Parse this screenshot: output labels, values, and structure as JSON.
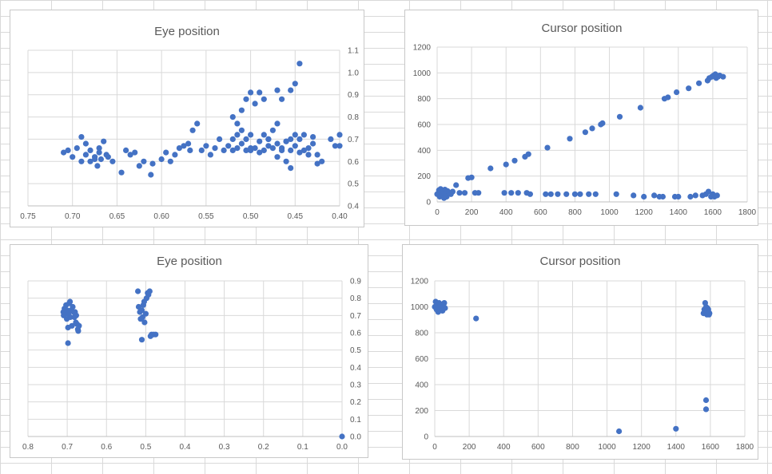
{
  "charts": [
    {
      "id": "tl",
      "type": "scatter",
      "title": "Eye position",
      "xlim": [
        0.75,
        0.4
      ],
      "ylim": [
        0.4,
        1.1
      ],
      "xstep": 0.05,
      "ystep": 0.1,
      "xdigits": 2,
      "ydigits": 1,
      "yaxis_side": "right",
      "grid": true,
      "color": "#4472c4",
      "points": [
        [
          0.71,
          0.64
        ],
        [
          0.705,
          0.65
        ],
        [
          0.7,
          0.62
        ],
        [
          0.695,
          0.66
        ],
        [
          0.69,
          0.6
        ],
        [
          0.69,
          0.71
        ],
        [
          0.685,
          0.63
        ],
        [
          0.685,
          0.68
        ],
        [
          0.68,
          0.6
        ],
        [
          0.68,
          0.65
        ],
        [
          0.675,
          0.62
        ],
        [
          0.675,
          0.61
        ],
        [
          0.672,
          0.58
        ],
        [
          0.67,
          0.64
        ],
        [
          0.67,
          0.66
        ],
        [
          0.668,
          0.61
        ],
        [
          0.665,
          0.69
        ],
        [
          0.662,
          0.63
        ],
        [
          0.66,
          0.62
        ],
        [
          0.655,
          0.6
        ],
        [
          0.645,
          0.55
        ],
        [
          0.64,
          0.65
        ],
        [
          0.635,
          0.63
        ],
        [
          0.63,
          0.64
        ],
        [
          0.625,
          0.58
        ],
        [
          0.62,
          0.6
        ],
        [
          0.612,
          0.54
        ],
        [
          0.61,
          0.59
        ],
        [
          0.6,
          0.61
        ],
        [
          0.595,
          0.64
        ],
        [
          0.59,
          0.6
        ],
        [
          0.585,
          0.63
        ],
        [
          0.58,
          0.66
        ],
        [
          0.575,
          0.67
        ],
        [
          0.57,
          0.68
        ],
        [
          0.568,
          0.65
        ],
        [
          0.565,
          0.74
        ],
        [
          0.56,
          0.77
        ],
        [
          0.555,
          0.65
        ],
        [
          0.55,
          0.67
        ],
        [
          0.545,
          0.63
        ],
        [
          0.54,
          0.66
        ],
        [
          0.535,
          0.7
        ],
        [
          0.53,
          0.65
        ],
        [
          0.525,
          0.67
        ],
        [
          0.52,
          0.65
        ],
        [
          0.515,
          0.66
        ],
        [
          0.51,
          0.68
        ],
        [
          0.505,
          0.65
        ],
        [
          0.5,
          0.66
        ],
        [
          0.49,
          0.69
        ],
        [
          0.485,
          0.65
        ],
        [
          0.48,
          0.7
        ],
        [
          0.475,
          0.66
        ],
        [
          0.47,
          0.68
        ],
        [
          0.465,
          0.66
        ],
        [
          0.46,
          0.69
        ],
        [
          0.455,
          0.7
        ],
        [
          0.45,
          0.67
        ],
        [
          0.445,
          0.64
        ],
        [
          0.44,
          0.65
        ],
        [
          0.435,
          0.66
        ],
        [
          0.43,
          0.68
        ],
        [
          0.425,
          0.63
        ],
        [
          0.52,
          0.7
        ],
        [
          0.515,
          0.72
        ],
        [
          0.51,
          0.74
        ],
        [
          0.505,
          0.7
        ],
        [
          0.5,
          0.72
        ],
        [
          0.495,
          0.66
        ],
        [
          0.49,
          0.64
        ],
        [
          0.485,
          0.72
        ],
        [
          0.48,
          0.67
        ],
        [
          0.475,
          0.74
        ],
        [
          0.47,
          0.77
        ],
        [
          0.465,
          0.65
        ],
        [
          0.46,
          0.69
        ],
        [
          0.455,
          0.65
        ],
        [
          0.45,
          0.72
        ],
        [
          0.445,
          0.7
        ],
        [
          0.52,
          0.8
        ],
        [
          0.515,
          0.77
        ],
        [
          0.51,
          0.83
        ],
        [
          0.505,
          0.88
        ],
        [
          0.5,
          0.91
        ],
        [
          0.495,
          0.86
        ],
        [
          0.49,
          0.91
        ],
        [
          0.485,
          0.88
        ],
        [
          0.47,
          0.92
        ],
        [
          0.465,
          0.88
        ],
        [
          0.455,
          0.92
        ],
        [
          0.45,
          0.95
        ],
        [
          0.445,
          1.04
        ],
        [
          0.44,
          0.72
        ],
        [
          0.435,
          0.63
        ],
        [
          0.43,
          0.71
        ],
        [
          0.425,
          0.59
        ],
        [
          0.42,
          0.6
        ],
        [
          0.41,
          0.7
        ],
        [
          0.405,
          0.67
        ],
        [
          0.4,
          0.72
        ],
        [
          0.4,
          0.67
        ],
        [
          0.5,
          0.65
        ],
        [
          0.48,
          0.7
        ],
        [
          0.47,
          0.62
        ],
        [
          0.46,
          0.6
        ],
        [
          0.455,
          0.57
        ]
      ]
    },
    {
      "id": "tr",
      "type": "scatter",
      "title": "Cursor position",
      "xlim": [
        0,
        1800
      ],
      "ylim": [
        0,
        1200
      ],
      "xstep": 200,
      "ystep": 200,
      "xdigits": 0,
      "ydigits": 0,
      "yaxis_side": "left",
      "grid": true,
      "color": "#4472c4",
      "points": [
        [
          0,
          60
        ],
        [
          10,
          90
        ],
        [
          15,
          40
        ],
        [
          20,
          100
        ],
        [
          25,
          70
        ],
        [
          30,
          50
        ],
        [
          35,
          80
        ],
        [
          40,
          30
        ],
        [
          45,
          95
        ],
        [
          50,
          60
        ],
        [
          55,
          40
        ],
        [
          60,
          85
        ],
        [
          70,
          70
        ],
        [
          80,
          60
        ],
        [
          90,
          80
        ],
        [
          110,
          130
        ],
        [
          130,
          70
        ],
        [
          160,
          70
        ],
        [
          180,
          185
        ],
        [
          200,
          190
        ],
        [
          220,
          70
        ],
        [
          240,
          70
        ],
        [
          310,
          260
        ],
        [
          390,
          70
        ],
        [
          400,
          290
        ],
        [
          430,
          70
        ],
        [
          450,
          320
        ],
        [
          470,
          70
        ],
        [
          510,
          350
        ],
        [
          520,
          70
        ],
        [
          530,
          370
        ],
        [
          540,
          60
        ],
        [
          630,
          60
        ],
        [
          640,
          420
        ],
        [
          660,
          60
        ],
        [
          700,
          60
        ],
        [
          750,
          60
        ],
        [
          770,
          490
        ],
        [
          800,
          60
        ],
        [
          830,
          60
        ],
        [
          860,
          540
        ],
        [
          880,
          60
        ],
        [
          900,
          570
        ],
        [
          920,
          60
        ],
        [
          950,
          600
        ],
        [
          960,
          610
        ],
        [
          1040,
          60
        ],
        [
          1060,
          660
        ],
        [
          1140,
          50
        ],
        [
          1180,
          730
        ],
        [
          1200,
          40
        ],
        [
          1260,
          50
        ],
        [
          1290,
          40
        ],
        [
          1310,
          40
        ],
        [
          1320,
          800
        ],
        [
          1340,
          810
        ],
        [
          1380,
          40
        ],
        [
          1390,
          850
        ],
        [
          1400,
          40
        ],
        [
          1460,
          880
        ],
        [
          1470,
          40
        ],
        [
          1500,
          50
        ],
        [
          1520,
          920
        ],
        [
          1540,
          50
        ],
        [
          1560,
          60
        ],
        [
          1570,
          940
        ],
        [
          1575,
          80
        ],
        [
          1580,
          960
        ],
        [
          1590,
          40
        ],
        [
          1595,
          970
        ],
        [
          1600,
          60
        ],
        [
          1605,
          980
        ],
        [
          1610,
          40
        ],
        [
          1615,
          990
        ],
        [
          1620,
          960
        ],
        [
          1625,
          50
        ],
        [
          1630,
          970
        ],
        [
          1640,
          980
        ],
        [
          1660,
          970
        ]
      ]
    },
    {
      "id": "bl",
      "type": "scatter",
      "title": "Eye position",
      "xlim": [
        0.8,
        0
      ],
      "ylim": [
        0,
        0.9
      ],
      "xstep": 0.1,
      "ystep": 0.1,
      "xdigits": 1,
      "ydigits": 1,
      "yaxis_side": "right",
      "grid": true,
      "color": "#4472c4",
      "points": [
        [
          0.71,
          0.72
        ],
        [
          0.709,
          0.7
        ],
        [
          0.707,
          0.74
        ],
        [
          0.705,
          0.71
        ],
        [
          0.703,
          0.76
        ],
        [
          0.701,
          0.68
        ],
        [
          0.7,
          0.73
        ],
        [
          0.698,
          0.63
        ],
        [
          0.697,
          0.71
        ],
        [
          0.695,
          0.77
        ],
        [
          0.693,
          0.78
        ],
        [
          0.692,
          0.69
        ],
        [
          0.69,
          0.73
        ],
        [
          0.688,
          0.64
        ],
        [
          0.686,
          0.75
        ],
        [
          0.684,
          0.72
        ],
        [
          0.682,
          0.69
        ],
        [
          0.68,
          0.72
        ],
        [
          0.678,
          0.66
        ],
        [
          0.677,
          0.7
        ],
        [
          0.675,
          0.65
        ],
        [
          0.673,
          0.62
        ],
        [
          0.672,
          0.61
        ],
        [
          0.67,
          0.64
        ],
        [
          0.698,
          0.54
        ],
        [
          0.52,
          0.84
        ],
        [
          0.518,
          0.75
        ],
        [
          0.515,
          0.72
        ],
        [
          0.513,
          0.68
        ],
        [
          0.51,
          0.73
        ],
        [
          0.508,
          0.69
        ],
        [
          0.506,
          0.76
        ],
        [
          0.504,
          0.78
        ],
        [
          0.503,
          0.66
        ],
        [
          0.5,
          0.71
        ],
        [
          0.498,
          0.8
        ],
        [
          0.495,
          0.83
        ],
        [
          0.493,
          0.82
        ],
        [
          0.49,
          0.84
        ],
        [
          0.488,
          0.58
        ],
        [
          0.485,
          0.59
        ],
        [
          0.48,
          0.59
        ],
        [
          0.475,
          0.59
        ],
        [
          0.51,
          0.56
        ],
        [
          0.0,
          0.0
        ]
      ]
    },
    {
      "id": "br",
      "type": "scatter",
      "title": "Cursor position",
      "xlim": [
        0,
        1800
      ],
      "ylim": [
        0,
        1200
      ],
      "xstep": 200,
      "ystep": 200,
      "xdigits": 0,
      "ydigits": 0,
      "yaxis_side": "left",
      "grid": true,
      "color": "#4472c4",
      "points": [
        [
          0,
          1000
        ],
        [
          5,
          1040
        ],
        [
          10,
          980
        ],
        [
          15,
          1010
        ],
        [
          20,
          960
        ],
        [
          25,
          1030
        ],
        [
          30,
          990
        ],
        [
          35,
          1020
        ],
        [
          40,
          1000
        ],
        [
          45,
          970
        ],
        [
          50,
          1010
        ],
        [
          55,
          1030
        ],
        [
          60,
          990
        ],
        [
          240,
          910
        ],
        [
          1070,
          40
        ],
        [
          1400,
          60
        ],
        [
          1560,
          950
        ],
        [
          1565,
          980
        ],
        [
          1570,
          1030
        ],
        [
          1572,
          960
        ],
        [
          1575,
          1000
        ],
        [
          1578,
          970
        ],
        [
          1580,
          940
        ],
        [
          1583,
          990
        ],
        [
          1585,
          950
        ],
        [
          1588,
          980
        ],
        [
          1590,
          960
        ],
        [
          1592,
          940
        ],
        [
          1595,
          950
        ],
        [
          1575,
          280
        ],
        [
          1575,
          210
        ]
      ]
    }
  ]
}
